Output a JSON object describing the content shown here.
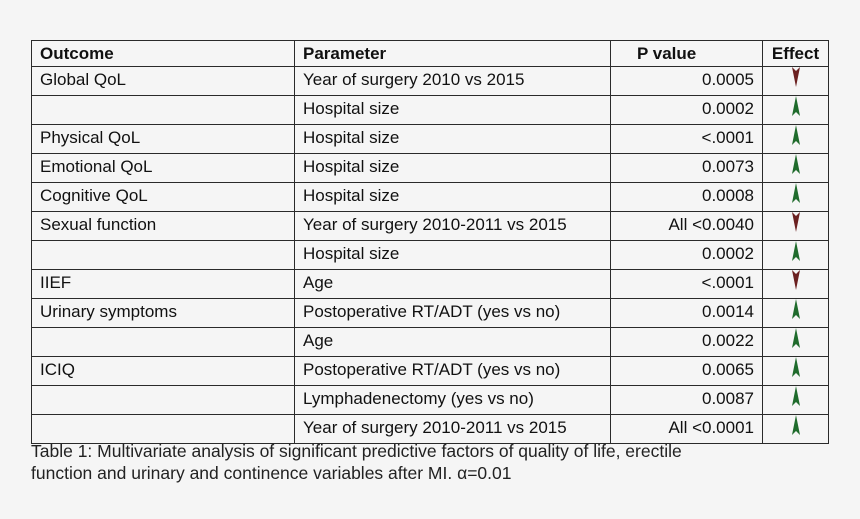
{
  "colors": {
    "up": "#1f6b2c",
    "down": "#6b2020"
  },
  "table": {
    "headers": {
      "outcome": "Outcome",
      "parameter": "Parameter",
      "pvalue": "P value",
      "effect": "Effect"
    },
    "rows": [
      {
        "outcome": "Global QoL",
        "parameter": "Year of surgery 2010 vs 2015",
        "p": "0.0005",
        "effect": "down"
      },
      {
        "outcome": "",
        "parameter": "Hospital size",
        "p": "0.0002",
        "effect": "up"
      },
      {
        "outcome": "Physical QoL",
        "parameter": "Hospital size",
        "p": "<.0001",
        "effect": "up"
      },
      {
        "outcome": "Emotional QoL",
        "parameter": "Hospital size",
        "p": "0.0073",
        "effect": "up"
      },
      {
        "outcome": "Cognitive QoL",
        "parameter": "Hospital size",
        "p": "0.0008",
        "effect": "up"
      },
      {
        "outcome": "Sexual function",
        "parameter": "Year of surgery 2010-2011 vs 2015",
        "p": "All <0.0040",
        "effect": "down"
      },
      {
        "outcome": "",
        "parameter": "Hospital size",
        "p": "0.0002",
        "effect": "up"
      },
      {
        "outcome": "IIEF",
        "parameter": "Age",
        "p": "<.0001",
        "effect": "down"
      },
      {
        "outcome": "Urinary symptoms",
        "parameter": "Postoperative RT/ADT (yes vs no)",
        "p": "0.0014",
        "effect": "up"
      },
      {
        "outcome": "",
        "parameter": "Age",
        "p": "0.0022",
        "effect": "up"
      },
      {
        "outcome": "ICIQ",
        "parameter": "Postoperative RT/ADT (yes vs no)",
        "p": "0.0065",
        "effect": "up"
      },
      {
        "outcome": "",
        "parameter": "Lymphadenectomy (yes vs no)",
        "p": "0.0087",
        "effect": "up"
      },
      {
        "outcome": "",
        "parameter": "Year of surgery 2010-2011 vs 2015",
        "p": "All <0.0001",
        "effect": "up"
      }
    ]
  },
  "caption": {
    "line1": "Table 1: Multivariate analysis of significant predictive factors of quality of life, erectile",
    "line2": "function and urinary and continence variables after MI. α=0.01"
  }
}
